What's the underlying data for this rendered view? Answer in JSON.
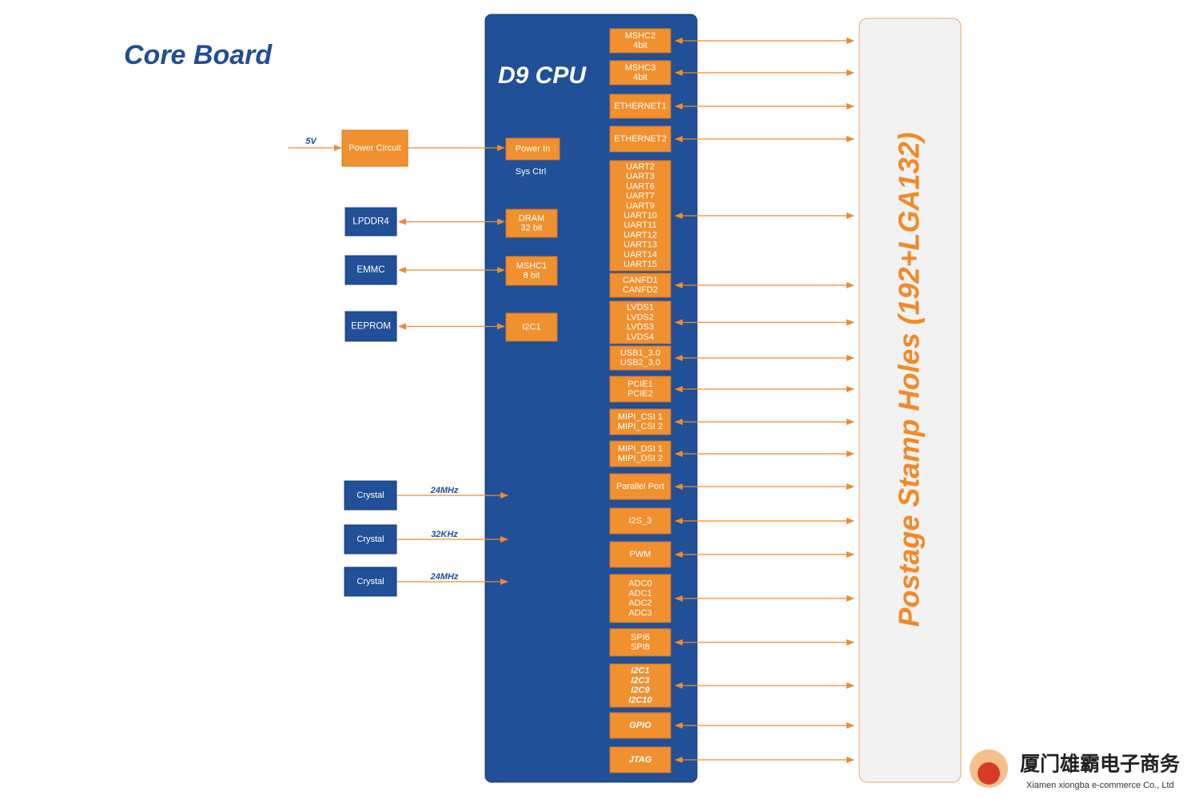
{
  "title": "Core Board",
  "cpu_label": "D9 CPU",
  "sys_ctrl": "Sys Ctrl",
  "power": {
    "input": "5V",
    "circuit": "Power Circuit",
    "port": "Power In"
  },
  "memory": [
    {
      "device": "LPDDR4",
      "port": [
        "DRAM",
        "32 bit"
      ]
    },
    {
      "device": "EMMC",
      "port": [
        "MSHC1",
        "8 bit"
      ]
    },
    {
      "device": "EEPROM",
      "port": [
        "I2C1"
      ]
    }
  ],
  "crystals": [
    {
      "device": "Crystal",
      "freq": "24MHz"
    },
    {
      "device": "Crystal",
      "freq": "32KHz"
    },
    {
      "device": "Crystal",
      "freq": "24MHz"
    }
  ],
  "interfaces": [
    [
      "MSHC2",
      "4bit"
    ],
    [
      "MSHC3",
      "4bit"
    ],
    [
      "ETHERNET1"
    ],
    [
      "ETHERNET2"
    ],
    [
      "UART2",
      "UART3",
      "UART6",
      "UART7",
      "UART9",
      "UART10",
      "UART11",
      "UART12",
      "UART13",
      "UART14",
      "UART15"
    ],
    [
      "CANFD1",
      "CANFD2"
    ],
    [
      "LVDS1",
      "LVDS2",
      "LVDS3",
      "LVDS4"
    ],
    [
      "USB1_3.0",
      "USB2_3.0"
    ],
    [
      "PCIE1",
      "PCIE2"
    ],
    [
      "MIPI_CSI 1",
      "MIPI_CSI 2"
    ],
    [
      "MIPI_DSI 1",
      "MIPI_DSI 2"
    ],
    [
      "Parallel Port"
    ],
    [
      "I2S_3"
    ],
    [
      "PWM"
    ],
    [
      "ADC0",
      "ADC1",
      "ADC2",
      "ADC3"
    ],
    [
      "SPI6",
      "SPI8"
    ],
    [
      "I2C1",
      "I2C3",
      "I2C9",
      "I2C10"
    ],
    [
      "GPIO"
    ],
    [
      "JTAG"
    ]
  ],
  "connector": "Postage Stamp Holes (192+LGA132)",
  "watermark": {
    "company": "厦门雄霸电子商务",
    "english": "Xiamen xiongba e-commerce Co., Ltd"
  }
}
